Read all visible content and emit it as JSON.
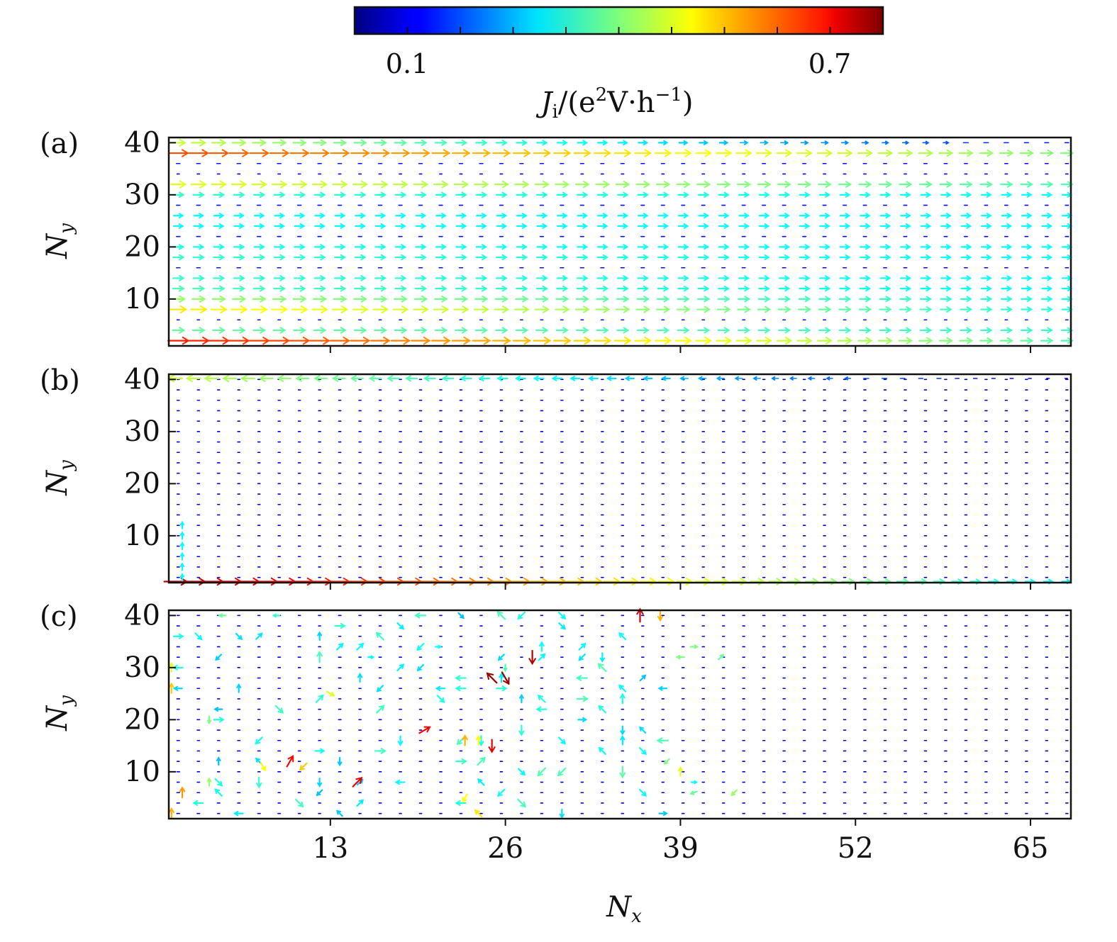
{
  "colorbar": {
    "tick_labels": [
      "0.1",
      "0.7"
    ],
    "tick_values": [
      0.1,
      0.7
    ],
    "range": [
      0.0,
      0.8
    ],
    "colormap": "jet",
    "label": {
      "symbol": "J",
      "subscript": "i",
      "open": "/(e",
      "sup1": "2",
      "mid": "V·h",
      "sup2": "−1",
      "close": ")"
    }
  },
  "chart_data": [
    {
      "type": "quiver",
      "panel_label": "(a)",
      "xlabel": "",
      "ylabel": {
        "symbol": "N",
        "subscript": "y"
      },
      "xlim": [
        1,
        68
      ],
      "ylim": [
        1,
        41
      ],
      "yticks": [
        "10",
        "20",
        "30",
        "40"
      ],
      "xticks": [
        "13",
        "26",
        "39",
        "52",
        "65"
      ],
      "show_xtick_labels": false,
      "grid_spacing": [
        1.5,
        2
      ],
      "direction": "+x",
      "note_values": "current magnitude per row (rows at Ny=2..40 step 2), left end to right end",
      "row_y": [
        2,
        4,
        6,
        8,
        10,
        12,
        14,
        16,
        18,
        20,
        22,
        24,
        26,
        28,
        30,
        32,
        34,
        36,
        38,
        40
      ],
      "row_mag_left": [
        0.68,
        0.38,
        0.08,
        0.52,
        0.42,
        0.36,
        0.34,
        0.12,
        0.34,
        0.32,
        0.12,
        0.3,
        0.3,
        0.12,
        0.34,
        0.48,
        0.08,
        0.12,
        0.64,
        0.46
      ],
      "row_mag_right": [
        0.36,
        0.34,
        0.08,
        0.32,
        0.32,
        0.3,
        0.3,
        0.1,
        0.3,
        0.3,
        0.1,
        0.3,
        0.3,
        0.1,
        0.3,
        0.36,
        0.08,
        0.1,
        0.4,
        0.12
      ]
    },
    {
      "type": "quiver",
      "panel_label": "(b)",
      "xlabel": "",
      "ylabel": {
        "symbol": "N",
        "subscript": "y"
      },
      "xlim": [
        1,
        68
      ],
      "ylim": [
        1,
        41
      ],
      "yticks": [
        "10",
        "20",
        "30",
        "40"
      ],
      "xticks": [
        "13",
        "26",
        "39",
        "52",
        "65"
      ],
      "show_xtick_labels": false,
      "grid_spacing": [
        1.5,
        2
      ],
      "bulk_magnitude": 0.06,
      "edges": [
        {
          "y": 1.2,
          "direction": "+x",
          "mag_left": 0.76,
          "mag_right": 0.28
        },
        {
          "y": 40.2,
          "direction": "-x",
          "mag_left": 0.46,
          "mag_right": 0.08
        },
        {
          "x": 2,
          "direction": "+y",
          "y_from": 2,
          "y_to": 12,
          "magnitude": 0.3
        }
      ]
    },
    {
      "type": "quiver",
      "panel_label": "(c)",
      "xlabel": {
        "symbol": "N",
        "subscript": "x"
      },
      "ylabel": {
        "symbol": "N",
        "subscript": "y"
      },
      "xlim": [
        1,
        68
      ],
      "ylim": [
        1,
        41
      ],
      "yticks": [
        "10",
        "20",
        "30",
        "40"
      ],
      "xticks": [
        "13",
        "26",
        "39",
        "52",
        "65"
      ],
      "show_xtick_labels": true,
      "grid_spacing": [
        1.5,
        2
      ],
      "bulk_magnitude": 0.07,
      "highlight_arrows": [
        {
          "x": 36,
          "y": 40,
          "angle": 90,
          "mag": 0.74
        },
        {
          "x": 37.5,
          "y": 40,
          "angle": -90,
          "mag": 0.56
        },
        {
          "x": 28,
          "y": 32,
          "angle": -90,
          "mag": 0.76
        },
        {
          "x": 25,
          "y": 28,
          "angle": 135,
          "mag": 0.78
        },
        {
          "x": 26,
          "y": 28,
          "angle": -60,
          "mag": 0.78
        },
        {
          "x": 20,
          "y": 18,
          "angle": 30,
          "mag": 0.7
        },
        {
          "x": 25,
          "y": 15,
          "angle": -90,
          "mag": 0.72
        },
        {
          "x": 23,
          "y": 16,
          "angle": 90,
          "mag": 0.56
        },
        {
          "x": 24,
          "y": 16,
          "angle": 90,
          "mag": 0.5
        },
        {
          "x": 10,
          "y": 12,
          "angle": 60,
          "mag": 0.7
        },
        {
          "x": 11,
          "y": 11,
          "angle": 225,
          "mag": 0.54
        },
        {
          "x": 8,
          "y": 11,
          "angle": -60,
          "mag": 0.5
        },
        {
          "x": 15,
          "y": 8,
          "angle": 45,
          "mag": 0.72
        },
        {
          "x": 2,
          "y": 6,
          "angle": 90,
          "mag": 0.58
        },
        {
          "x": 4,
          "y": 8,
          "angle": 90,
          "mag": 0.42
        },
        {
          "x": 23,
          "y": 5,
          "angle": 240,
          "mag": 0.5
        },
        {
          "x": 24,
          "y": 2,
          "angle": 135,
          "mag": 0.52
        },
        {
          "x": 40,
          "y": 34,
          "angle": 0,
          "mag": 0.4
        },
        {
          "x": 39,
          "y": 32,
          "angle": 180,
          "mag": 0.4
        },
        {
          "x": 42,
          "y": 32,
          "angle": 45,
          "mag": 0.38
        },
        {
          "x": 13,
          "y": 25,
          "angle": -30,
          "mag": 0.48
        },
        {
          "x": 4,
          "y": 20,
          "angle": -90,
          "mag": 0.4
        },
        {
          "x": 39,
          "y": 10,
          "angle": 90,
          "mag": 0.48
        },
        {
          "x": 38,
          "y": 12,
          "angle": -135,
          "mag": 0.4
        },
        {
          "x": 40,
          "y": 8,
          "angle": 0,
          "mag": 0.3
        },
        {
          "x": 40,
          "y": 6,
          "angle": 200,
          "mag": 0.38
        },
        {
          "x": 43,
          "y": 6,
          "angle": 225,
          "mag": 0.42
        },
        {
          "x": 5,
          "y": 40,
          "angle": 180,
          "mag": 0.38
        },
        {
          "x": 9,
          "y": 40,
          "angle": 180,
          "mag": 0.34
        },
        {
          "x": 1.2,
          "y": 30,
          "angle": 90,
          "mag": 0.48
        },
        {
          "x": 1.2,
          "y": 26,
          "angle": 90,
          "mag": 0.54
        },
        {
          "x": 1.2,
          "y": 2,
          "angle": 90,
          "mag": 0.56
        },
        {
          "x": 21,
          "y": 34,
          "angle": 0,
          "mag": 0.3
        },
        {
          "x": 26,
          "y": 30,
          "angle": -90,
          "mag": 0.36
        },
        {
          "x": 16,
          "y": 32,
          "angle": 0,
          "mag": 0.3
        }
      ]
    }
  ]
}
